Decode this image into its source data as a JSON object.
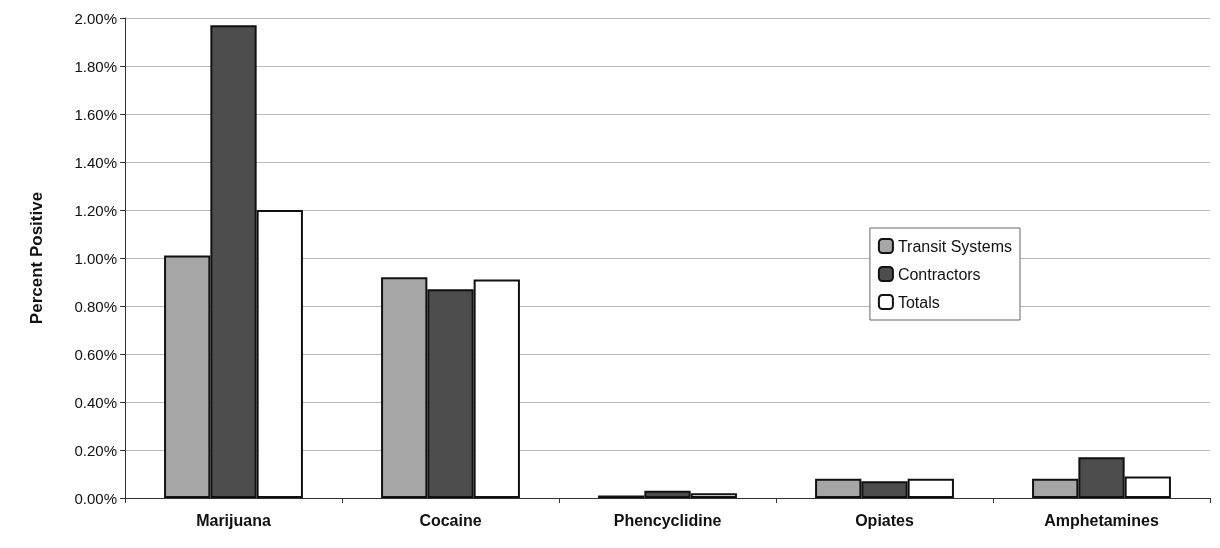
{
  "chart_data": {
    "type": "bar",
    "ylabel": "Percent Positive",
    "categories": [
      "Marijuana",
      "Cocaine",
      "Phencyclidine",
      "Opiates",
      "Amphetamines"
    ],
    "series": [
      {
        "name": "Transit Systems",
        "color": "#a6a6a6",
        "values": [
          1.01,
          0.92,
          0.01,
          0.08,
          0.08
        ]
      },
      {
        "name": "Contractors",
        "color": "#4d4d4d",
        "values": [
          1.97,
          0.87,
          0.03,
          0.07,
          0.17
        ]
      },
      {
        "name": "Totals",
        "color": "#ffffff",
        "values": [
          1.2,
          0.91,
          0.02,
          0.08,
          0.09
        ]
      }
    ],
    "ylim": [
      0,
      2
    ],
    "yticks": [
      {
        "value": 0,
        "label": "0.00%"
      },
      {
        "value": 0.2,
        "label": "0.20%"
      },
      {
        "value": 0.4,
        "label": "0.40%"
      },
      {
        "value": 0.6,
        "label": "0.60%"
      },
      {
        "value": 0.8,
        "label": "0.80%"
      },
      {
        "value": 1,
        "label": "1.00%"
      },
      {
        "value": 1.2,
        "label": "1.20%"
      },
      {
        "value": 1.4,
        "label": "1.40%"
      },
      {
        "value": 1.6,
        "label": "1.60%"
      },
      {
        "value": 1.8,
        "label": "1.80%"
      },
      {
        "value": 2,
        "label": "2.00%"
      }
    ],
    "grid": "y",
    "legend": "right"
  }
}
